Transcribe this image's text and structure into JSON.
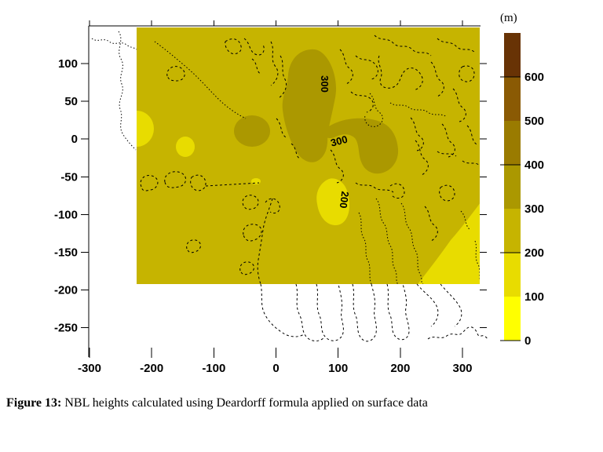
{
  "figure_caption": {
    "label": "Figure 13:",
    "text": "NBL heights calculated using Deardorff formula applied on surface data"
  },
  "chart_data": {
    "type": "heatmap",
    "subtype": "filled-contour-map",
    "title": "",
    "xlabel": "",
    "ylabel": "",
    "x_ticks": [
      -300,
      -200,
      -100,
      0,
      100,
      200,
      300
    ],
    "y_ticks": [
      100,
      50,
      0,
      -50,
      -100,
      -150,
      -200,
      -250
    ],
    "xlim": [
      -300,
      330
    ],
    "ylim": [
      -290,
      150
    ],
    "grid": false,
    "legend_position": "right-colorbar",
    "contour_levels_labeled": [
      300,
      300,
      200
    ],
    "contour_labels": [
      {
        "text": "300",
        "x": 409,
        "y": 107,
        "rot": 90
      },
      {
        "text": "300",
        "x": 433,
        "y": 184,
        "rot": -15
      },
      {
        "text": "200",
        "x": 434,
        "y": 254,
        "rot": 97
      }
    ],
    "colorbar": {
      "unit_label": "(m)",
      "ticks": [
        0,
        100,
        200,
        300,
        400,
        500,
        600
      ],
      "value_range": [
        0,
        700
      ],
      "band_colors": [
        "#ffff00",
        "#e8dc00",
        "#c6b400",
        "#ab9800",
        "#9a7b00",
        "#8a5a04",
        "#683305"
      ],
      "position": "right"
    },
    "data_domain": {
      "x": [
        -224,
        328
      ],
      "y": [
        -192,
        148
      ]
    },
    "regions": [
      {
        "band_m": "200-300",
        "note": "dominant background value over the whole data domain"
      },
      {
        "band_m": "300-400",
        "note": "central blobs approx x 10..195, y -50..120"
      },
      {
        "band_m": "300-400",
        "note": "small blob approx x -68..-9, y -10..31"
      },
      {
        "band_m": "100-200",
        "note": "patch approx x 66..118, y -114..-53 near 200 label"
      },
      {
        "band_m": "100-200",
        "note": "southeast corner approx x 228..328, y -192..-84"
      },
      {
        "band_m": "100-200",
        "note": "west edge patch approx x -224..-196, y -10..37"
      },
      {
        "band_m": "100-200",
        "note": "patch approx x -161..-131, y -24..3"
      }
    ],
    "overlay": "dashed coastline and terrain contour lines"
  },
  "palette": {
    "ink": "#000000",
    "background": "#ffffff",
    "fill_main": "#c6b400",
    "fill_dark": "#ab9800",
    "fill_light": "#e8dc00",
    "fill_bright": "#ffff00"
  }
}
